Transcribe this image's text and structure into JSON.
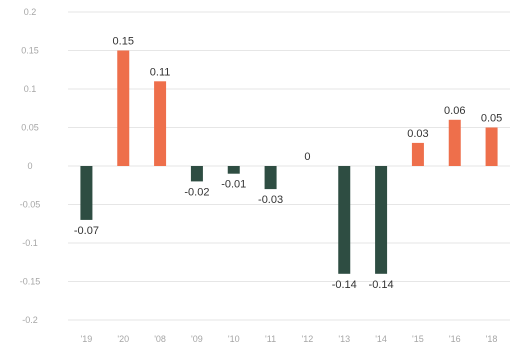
{
  "chart_data": {
    "type": "bar",
    "title": "",
    "xlabel": "",
    "ylabel": "",
    "categories": [
      "'19",
      "'20",
      "'08",
      "'09",
      "'10",
      "'11",
      "'12",
      "'13",
      "'14",
      "'15",
      "'16",
      "'18"
    ],
    "values": [
      -0.07,
      0.15,
      0.11,
      -0.02,
      -0.01,
      -0.03,
      0,
      -0.14,
      -0.14,
      0.03,
      0.06,
      0.05
    ],
    "data_labels": [
      "-0.07",
      "0.15",
      "0.11",
      "-0.02",
      "-0.01",
      "-0.03",
      "0",
      "-0.14",
      "-0.14",
      "0.03",
      "0.06",
      "0.05"
    ],
    "yticks": [
      0.2,
      0.15,
      0.1,
      0.05,
      0,
      -0.05,
      -0.1,
      -0.15,
      -0.2
    ],
    "ytick_labels": [
      "0.2",
      "0.15",
      "0.1",
      "0.05",
      "0",
      "-0.05",
      "-0.1",
      "-0.15",
      "-0.2"
    ],
    "ylim": [
      -0.2,
      0.2
    ],
    "grid": true,
    "legend": "none",
    "colors": {
      "positive": "#ee6f4b",
      "negative": "#2e4d42",
      "grid": "#e6e6e6",
      "tick_text": "#a6a6a6",
      "label_text": "#333333"
    }
  }
}
